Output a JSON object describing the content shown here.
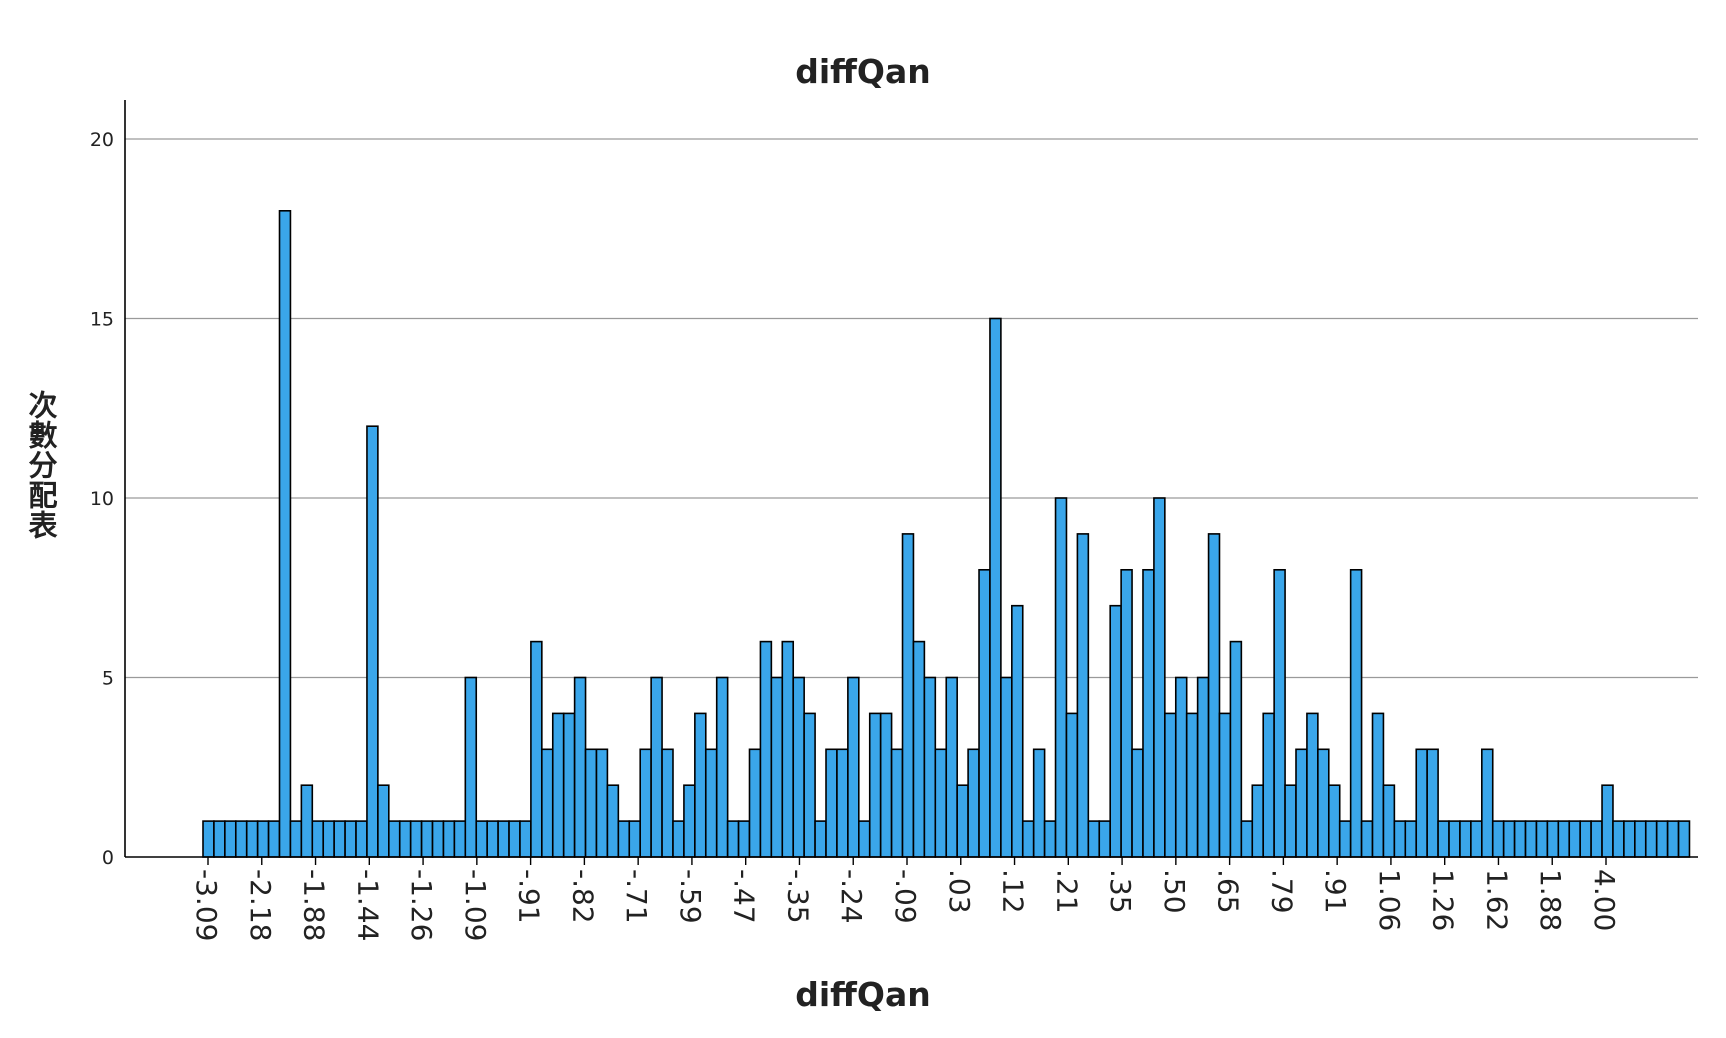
{
  "chart_data": {
    "type": "bar",
    "title": "diffQan",
    "xlabel": "diffQan",
    "ylabel": "次數分配表",
    "ylim": [
      0,
      21
    ],
    "yticks": [
      0,
      5,
      10,
      15,
      20
    ],
    "grid": true,
    "bar_color": "#3AA6EA",
    "bar_edge_color": "#000000",
    "xtick_labels": [
      "-3.09",
      "-2.18",
      "-1.88",
      "-1.44",
      "-1.26",
      "-1.09",
      "-.91",
      "-.82",
      "-.71",
      "-.59",
      "-.47",
      "-.35",
      "-.24",
      "-.09",
      ".03",
      ".12",
      ".21",
      ".35",
      ".50",
      ".65",
      ".79",
      ".91",
      "1.06",
      "1.26",
      "1.62",
      "1.88",
      "4.00"
    ],
    "values": [
      1,
      1,
      1,
      1,
      1,
      1,
      1,
      18,
      1,
      2,
      1,
      1,
      1,
      1,
      1,
      12,
      2,
      1,
      1,
      1,
      1,
      1,
      1,
      1,
      5,
      1,
      1,
      1,
      1,
      1,
      6,
      3,
      4,
      4,
      5,
      3,
      3,
      2,
      1,
      1,
      3,
      5,
      3,
      1,
      2,
      4,
      3,
      5,
      1,
      1,
      3,
      6,
      5,
      6,
      5,
      4,
      1,
      3,
      3,
      5,
      1,
      4,
      4,
      3,
      9,
      6,
      5,
      3,
      5,
      2,
      3,
      8,
      15,
      5,
      7,
      1,
      3,
      1,
      10,
      4,
      9,
      1,
      1,
      7,
      8,
      3,
      8,
      10,
      4,
      5,
      4,
      5,
      9,
      4,
      6,
      1,
      2,
      4,
      8,
      2,
      3,
      4,
      3,
      2,
      1,
      8,
      1,
      4,
      2,
      1,
      1,
      3,
      3,
      1,
      1,
      1,
      1,
      3,
      1,
      1,
      1,
      1,
      1,
      1,
      1,
      1,
      1,
      1,
      2,
      1,
      1,
      1,
      1,
      1,
      1,
      1
    ]
  }
}
